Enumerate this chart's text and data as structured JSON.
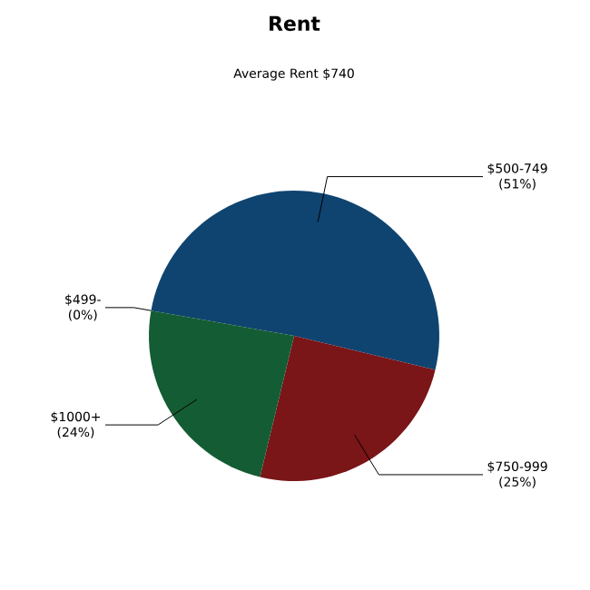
{
  "chart_data": {
    "type": "pie",
    "title": "Rent",
    "subtitle": "Average Rent  $740",
    "categories": [
      "$499-",
      "$500-749",
      "$750-999",
      "$1000+"
    ],
    "values": [
      0,
      51,
      25,
      24
    ],
    "value_labels": [
      "(0%)",
      "(51%)",
      "(25%)",
      "(24%)"
    ],
    "colors": [
      "#2a5a8a",
      "#0f4470",
      "#7a1518",
      "#145c33"
    ]
  }
}
